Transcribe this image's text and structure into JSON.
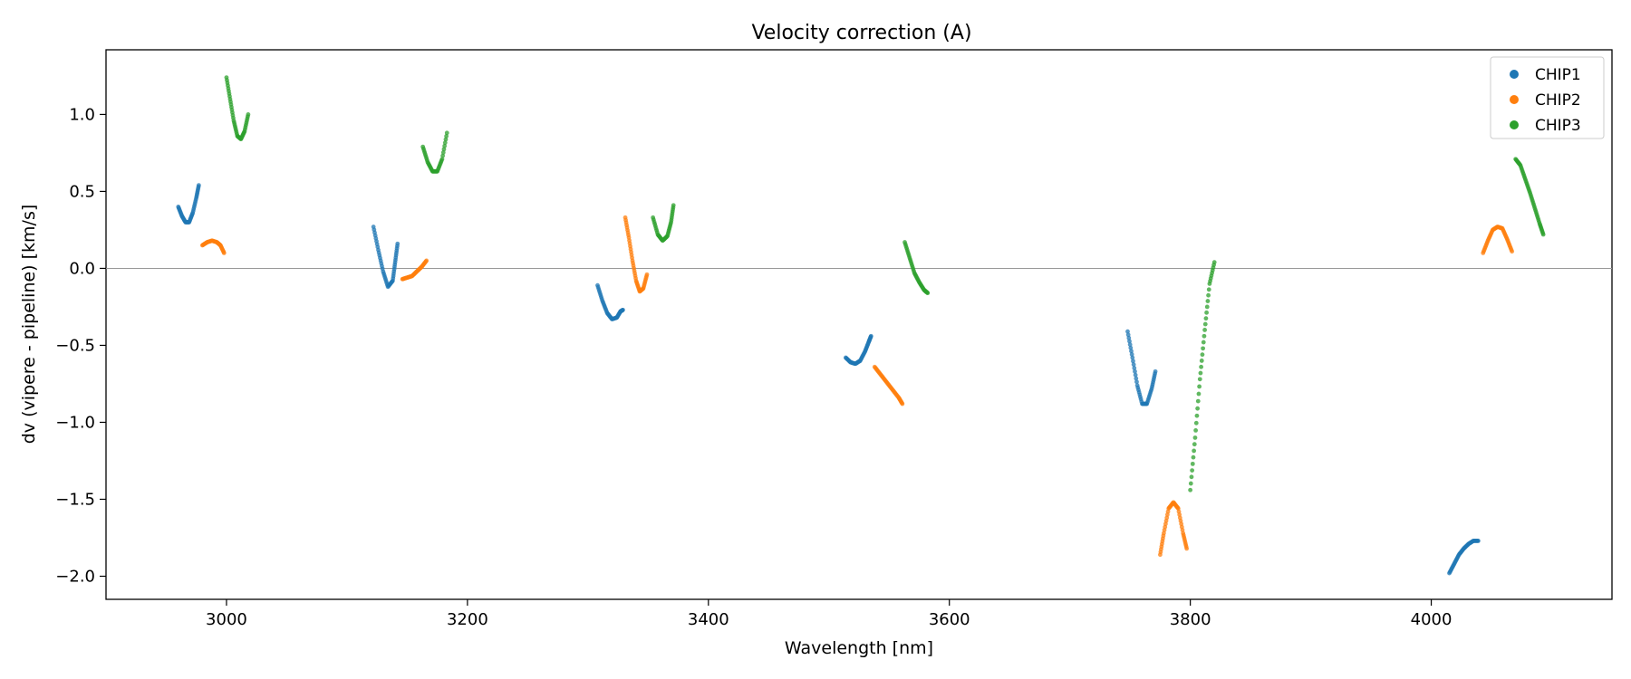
{
  "chart_data": {
    "type": "scatter",
    "title": "Velocity correction (A)",
    "xlabel": "Wavelength [nm]",
    "ylabel": "dv (vipere - pipeline) [km/s]",
    "xlim": [
      2900,
      4150
    ],
    "ylim": [
      -2.15,
      1.42
    ],
    "xticks": [
      3000,
      3200,
      3400,
      3600,
      3800,
      4000
    ],
    "yticks": [
      -2.0,
      -1.5,
      -1.0,
      -0.5,
      0.0,
      0.5,
      1.0
    ],
    "xtick_labels": [
      "3000",
      "3200",
      "3400",
      "3600",
      "3800",
      "4000"
    ],
    "ytick_labels": [
      "−2.0",
      "−1.5",
      "−1.0",
      "−0.5",
      "0.0",
      "0.5",
      "1.0"
    ],
    "reference_line_y": 0.0,
    "legend": {
      "position": "upper right",
      "entries": [
        "CHIP1",
        "CHIP2",
        "CHIP3"
      ]
    },
    "colors": {
      "CHIP1": "#1f77b4",
      "CHIP2": "#ff7f0e",
      "CHIP3": "#2ca02c",
      "zero_line": "#999999"
    },
    "series": [
      {
        "name": "CHIP1",
        "segments": [
          [
            [
              2960,
              0.4
            ],
            [
              2963,
              0.34
            ],
            [
              2966,
              0.3
            ],
            [
              2969,
              0.3
            ],
            [
              2972,
              0.36
            ],
            [
              2975,
              0.46
            ],
            [
              2977,
              0.54
            ]
          ],
          [
            [
              3122,
              0.27
            ],
            [
              3126,
              0.12
            ],
            [
              3130,
              -0.02
            ],
            [
              3134,
              -0.12
            ],
            [
              3138,
              -0.08
            ],
            [
              3140,
              0.04
            ],
            [
              3142,
              0.16
            ]
          ],
          [
            [
              3308,
              -0.11
            ],
            [
              3312,
              -0.21
            ],
            [
              3316,
              -0.29
            ],
            [
              3320,
              -0.33
            ],
            [
              3324,
              -0.32
            ],
            [
              3327,
              -0.28
            ],
            [
              3329,
              -0.27
            ]
          ],
          [
            [
              3514,
              -0.58
            ],
            [
              3518,
              -0.61
            ],
            [
              3522,
              -0.62
            ],
            [
              3526,
              -0.6
            ],
            [
              3530,
              -0.54
            ],
            [
              3533,
              -0.48
            ],
            [
              3535,
              -0.44
            ]
          ],
          [
            [
              3748,
              -0.41
            ],
            [
              3752,
              -0.58
            ],
            [
              3756,
              -0.76
            ],
            [
              3760,
              -0.88
            ],
            [
              3764,
              -0.88
            ],
            [
              3768,
              -0.78
            ],
            [
              3771,
              -0.67
            ]
          ],
          [
            [
              4015,
              -1.98
            ],
            [
              4019,
              -1.92
            ],
            [
              4023,
              -1.86
            ],
            [
              4027,
              -1.82
            ],
            [
              4031,
              -1.79
            ],
            [
              4035,
              -1.77
            ],
            [
              4039,
              -1.77
            ]
          ]
        ]
      },
      {
        "name": "CHIP2",
        "segments": [
          [
            [
              2980,
              0.15
            ],
            [
              2984,
              0.17
            ],
            [
              2988,
              0.18
            ],
            [
              2992,
              0.17
            ],
            [
              2995,
              0.15
            ],
            [
              2998,
              0.1
            ]
          ],
          [
            [
              3146,
              -0.07
            ],
            [
              3150,
              -0.06
            ],
            [
              3154,
              -0.05
            ],
            [
              3158,
              -0.02
            ],
            [
              3162,
              0.01
            ],
            [
              3166,
              0.05
            ]
          ],
          [
            [
              3331,
              0.33
            ],
            [
              3334,
              0.2
            ],
            [
              3337,
              0.05
            ],
            [
              3340,
              -0.08
            ],
            [
              3343,
              -0.15
            ],
            [
              3346,
              -0.13
            ],
            [
              3349,
              -0.04
            ]
          ],
          [
            [
              3538,
              -0.64
            ],
            [
              3543,
              -0.69
            ],
            [
              3548,
              -0.74
            ],
            [
              3553,
              -0.79
            ],
            [
              3558,
              -0.84
            ],
            [
              3561,
              -0.88
            ]
          ],
          [
            [
              3775,
              -1.86
            ],
            [
              3778,
              -1.72
            ],
            [
              3782,
              -1.56
            ],
            [
              3786,
              -1.52
            ],
            [
              3790,
              -1.56
            ],
            [
              3794,
              -1.72
            ],
            [
              3797,
              -1.82
            ]
          ],
          [
            [
              4043,
              0.1
            ],
            [
              4047,
              0.18
            ],
            [
              4051,
              0.25
            ],
            [
              4055,
              0.27
            ],
            [
              4059,
              0.26
            ],
            [
              4063,
              0.19
            ],
            [
              4067,
              0.11
            ]
          ]
        ]
      },
      {
        "name": "CHIP3",
        "segments": [
          [
            [
              3000,
              1.24
            ],
            [
              3003,
              1.1
            ],
            [
              3006,
              0.96
            ],
            [
              3009,
              0.86
            ],
            [
              3012,
              0.84
            ],
            [
              3015,
              0.89
            ],
            [
              3018,
              1.0
            ]
          ],
          [
            [
              3163,
              0.79
            ],
            [
              3167,
              0.69
            ],
            [
              3171,
              0.63
            ],
            [
              3175,
              0.63
            ],
            [
              3179,
              0.71
            ],
            [
              3183,
              0.88
            ]
          ],
          [
            [
              3354,
              0.33
            ],
            [
              3358,
              0.22
            ],
            [
              3362,
              0.18
            ],
            [
              3366,
              0.21
            ],
            [
              3369,
              0.3
            ],
            [
              3371,
              0.41
            ]
          ],
          [
            [
              3563,
              0.17
            ],
            [
              3567,
              0.07
            ],
            [
              3571,
              -0.03
            ],
            [
              3575,
              -0.09
            ],
            [
              3579,
              -0.14
            ],
            [
              3582,
              -0.16
            ]
          ],
          [
            [
              3800,
              -1.44
            ],
            [
              3804,
              -1.1
            ],
            [
              3808,
              -0.72
            ],
            [
              3812,
              -0.4
            ],
            [
              3816,
              -0.1
            ],
            [
              3820,
              0.04
            ]
          ],
          [
            [
              4070,
              0.71
            ],
            [
              4074,
              0.67
            ],
            [
              4078,
              0.58
            ],
            [
              4082,
              0.49
            ],
            [
              4086,
              0.39
            ],
            [
              4090,
              0.29
            ],
            [
              4093,
              0.22
            ]
          ]
        ]
      }
    ]
  }
}
